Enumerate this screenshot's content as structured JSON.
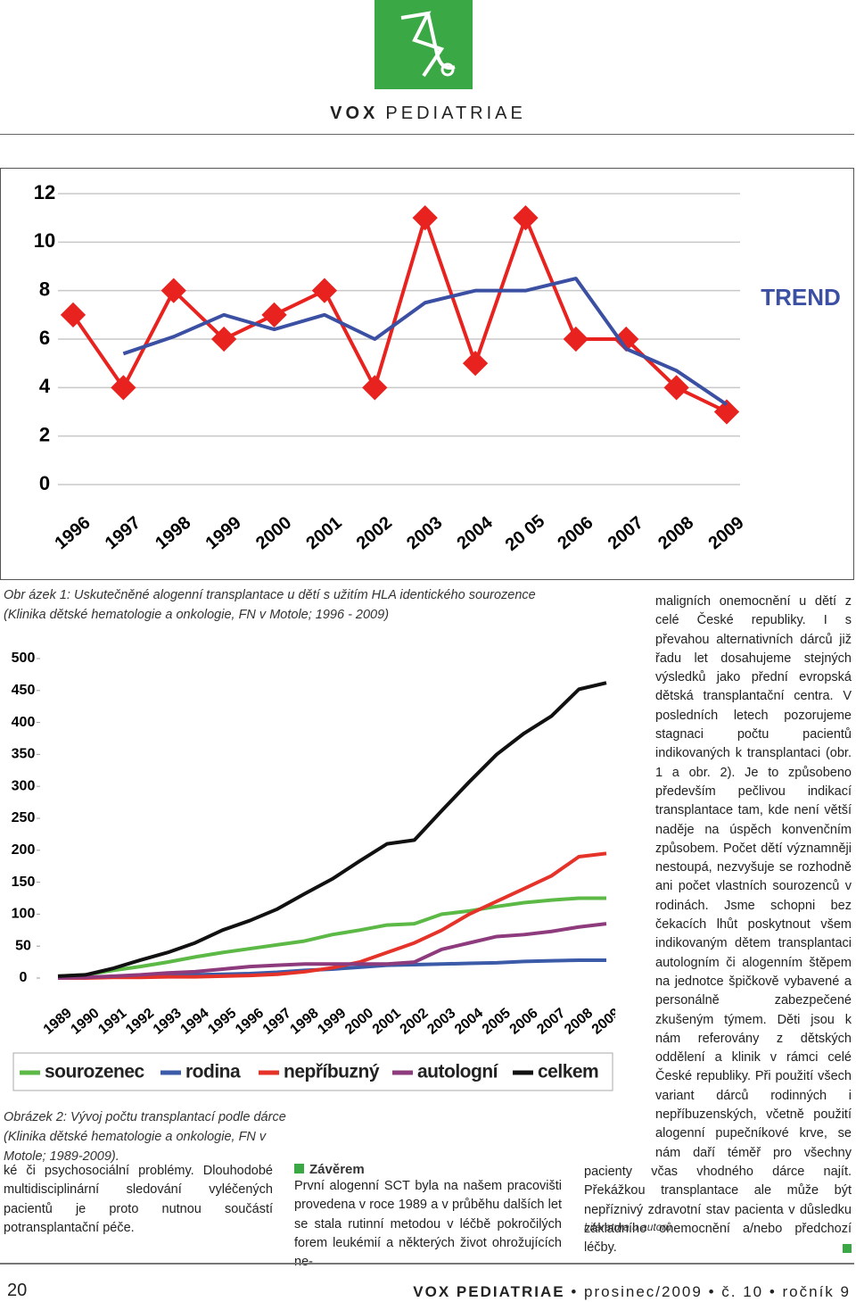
{
  "header": {
    "brand_bold": "VOX",
    "brand_light": "PEDIATRIAE"
  },
  "chart_data": [
    {
      "type": "line",
      "categories": [
        "1996",
        "1997",
        "1998",
        "1999",
        "2000",
        "2001",
        "2002",
        "2003",
        "2004",
        "20 05",
        "2006",
        "2007",
        "2008",
        "2009"
      ],
      "series": [
        {
          "color": "#e8231f",
          "marker": "diamond",
          "values": [
            7,
            4,
            8,
            6,
            7,
            8,
            4,
            11,
            5,
            11,
            6,
            6,
            4,
            3
          ]
        },
        {
          "name": "TREND",
          "color": "#3b4fa3",
          "values": [
            null,
            5.4,
            6.1,
            7,
            6.4,
            7,
            6,
            7.5,
            8,
            8,
            8.5,
            5.6,
            4.7,
            3.3
          ]
        }
      ],
      "ylim": [
        0,
        12
      ],
      "yticks": [
        0,
        2,
        4,
        6,
        8,
        10,
        12
      ],
      "grid": true,
      "legend": "right"
    },
    {
      "type": "line",
      "categories": [
        "1989",
        "1990",
        "1991",
        "1992",
        "1993",
        "1994",
        "1995",
        "1996",
        "1997",
        "1998",
        "1999",
        "2000",
        "2001",
        "2002",
        "2003",
        "2004",
        "2005",
        "2006",
        "2007",
        "2008",
        "2009"
      ],
      "series": [
        {
          "name": "sourozenec",
          "color": "#5cb946",
          "values": [
            3,
            5,
            12,
            18,
            25,
            33,
            40,
            46,
            52,
            58,
            68,
            75,
            83,
            85,
            100,
            105,
            112,
            118,
            122,
            125,
            125
          ]
        },
        {
          "name": "rodina",
          "color": "#3b5ba8",
          "values": [
            0,
            1,
            2,
            3,
            4,
            5,
            6,
            7,
            9,
            12,
            14,
            17,
            20,
            21,
            22,
            23,
            24,
            26,
            27,
            28,
            28
          ]
        },
        {
          "name": "nepříbuzný",
          "color": "#e5332a",
          "values": [
            0,
            0,
            1,
            1,
            2,
            2,
            3,
            4,
            6,
            10,
            16,
            25,
            40,
            55,
            75,
            100,
            120,
            140,
            160,
            190,
            195
          ]
        },
        {
          "name": "autologní",
          "color": "#8e3b7e",
          "values": [
            0,
            1,
            3,
            5,
            8,
            10,
            14,
            18,
            20,
            22,
            22,
            22,
            22,
            25,
            45,
            55,
            65,
            68,
            73,
            80,
            85
          ]
        },
        {
          "name": "celkem",
          "color": "#111111",
          "values": [
            3,
            5,
            15,
            28,
            40,
            55,
            75,
            90,
            108,
            132,
            155,
            183,
            210,
            216,
            262,
            307,
            350,
            383,
            410,
            452,
            462
          ]
        }
      ],
      "ylim": [
        0,
        500
      ],
      "yticks": [
        0,
        50,
        100,
        150,
        200,
        250,
        300,
        350,
        400,
        450,
        500
      ],
      "grid": false,
      "legend": "bottom"
    }
  ],
  "captions": [
    "Obr ázek 1: Uskutečněné alogenní transplantace u dětí s užitím HLA identického sourozence (Klinika dětské hematologie a onkologie, FN v Motole; 1996 - 2009)",
    "Obrázek 2: Vývoj počtu transplantací podle dárce (Klinika dětské hematologie a onkologie, FN v Motole; 1989-2009)."
  ],
  "columns": {
    "left": "ké či psychosociální problémy. Dlouhodobé multidisciplinární sledování vyléčených pacientů je proto nutnou součástí potransplantační péče.",
    "middle_heading": "Závěrem",
    "middle": "První alogenní SCT byla na našem pracovišti provedena v roce 1989 a v průběhu dalších let se stala rutinní metodou v léčbě pokročilých forem leukémií a některých život ohrožujících ne-",
    "right": "maligních onemocnění u dětí z celé České republiky. I s převahou alternativních dárců již řadu let dosahujeme stejných výsledků jako přední evropská dětská transplantační centra. V posledních letech pozorujeme stagnaci počtu pacientů indikovaných k transplantaci (obr. 1 a obr. 2). Je to způsobeno především pečlivou indikací transplantace tam, kde není větší naděje na úspěch konvenčním způsobem. Počet dětí významněji nestoupá, nezvyšuje se rozhodně ani počet vlastních sourozenců v rodinách. Jsme schopni bez čekacích lhůt poskytnout všem indikovaným dětem transplantaci autologním či alogenním štěpem na jednotce špičkově vybavené a personálně zabezpečené zkušeným týmem. Děti jsou k nám referovány z dětských oddělení a klinik v rámci celé České republiky. Při použití všech variant dárců rodinných i nepříbuzenských, včetně použití alogenní pupečníkové krve, se nám daří téměř pro všechny pacienty včas vhodného dárce najít. Překážkou transplantace ale může být nepříznivý zdravotní stav pacienta v důsledku základního onemocnění a/nebo předchozí léčby.",
    "references": "Literatura u autorů"
  },
  "footer": {
    "page": "20",
    "journal": "VOX PEDIATRIAE",
    "issue_date": "prosinec/2009",
    "issue_number": "č. 10",
    "volume": "ročník 9"
  }
}
